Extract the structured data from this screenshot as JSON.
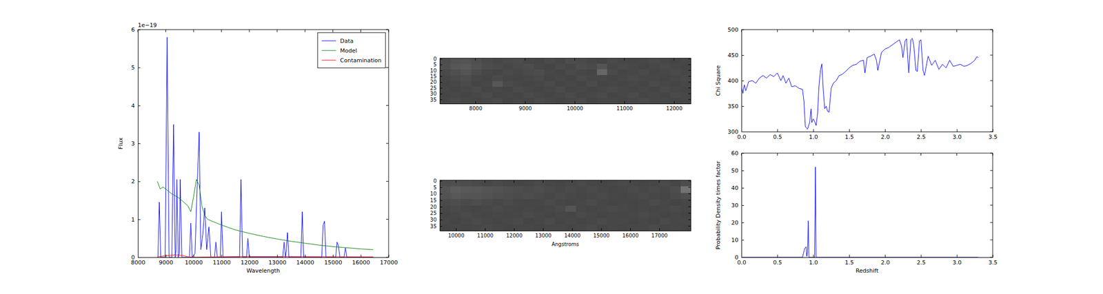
{
  "chart_data": [
    {
      "type": "line",
      "xlabel": "Wavelength",
      "ylabel": "Flux",
      "y_offset_text": "1e−19",
      "xlim": [
        8000,
        17000
      ],
      "xticks": [
        8000,
        9000,
        10000,
        11000,
        12000,
        13000,
        14000,
        15000,
        16000,
        17000
      ],
      "ylim": [
        0,
        6
      ],
      "yticks": [
        0,
        1,
        2,
        3,
        4,
        5,
        6
      ],
      "legend": "upper right",
      "series": [
        {
          "name": "Data",
          "color": "#0000ff",
          "x": [
            8720,
            8770,
            8820,
            8980,
            9050,
            9120,
            9220,
            9280,
            9340,
            9370,
            9400,
            9450,
            9490,
            9520,
            9580,
            9850,
            9900,
            9950,
            10050,
            10130,
            10200,
            10260,
            10330,
            10400,
            10470,
            10550,
            10620,
            10750,
            10800,
            10850,
            10960,
            11000,
            11060,
            11650,
            11700,
            11760,
            11900,
            11950,
            12000,
            13200,
            13250,
            13300,
            13330,
            13370,
            13420,
            13850,
            13900,
            13950,
            14600,
            14650,
            14700,
            14750,
            15100,
            15150,
            15200,
            15250,
            15400,
            15450,
            15500,
            16450
          ],
          "values": [
            0,
            1.45,
            0,
            0,
            5.8,
            0,
            0,
            3.5,
            0,
            0.2,
            2.05,
            0,
            0.1,
            2.05,
            0,
            0,
            0.9,
            0,
            0.1,
            1.9,
            3.3,
            0.2,
            0.6,
            1.3,
            0.2,
            0.8,
            0,
            0,
            0.4,
            0,
            0,
            1.2,
            0,
            0,
            2.05,
            0,
            0,
            0.5,
            0,
            0,
            0.4,
            0,
            0.2,
            0.65,
            0,
            0,
            1.2,
            0,
            0,
            0.85,
            0.95,
            0,
            0,
            0.4,
            0.3,
            0,
            0,
            0.25,
            0,
            0
          ]
        },
        {
          "name": "Model",
          "color": "#008000",
          "x": [
            8700,
            8800,
            8900,
            9000,
            9200,
            9500,
            9800,
            9900,
            10000,
            10100,
            10200,
            10300,
            10400,
            10500,
            11000,
            11500,
            12000,
            12500,
            13000,
            13500,
            14000,
            14500,
            15000,
            15500,
            16000,
            16450
          ],
          "values": [
            2.0,
            1.8,
            1.85,
            1.8,
            1.68,
            1.55,
            1.35,
            1.2,
            1.6,
            2.05,
            1.9,
            1.35,
            1.1,
            1.0,
            0.85,
            0.72,
            0.63,
            0.55,
            0.48,
            0.42,
            0.37,
            0.32,
            0.28,
            0.25,
            0.22,
            0.2
          ]
        },
        {
          "name": "Contamination",
          "color": "#ff0000",
          "x": [
            8700,
            9000,
            9300,
            9600,
            9800,
            10000,
            11500,
            13000,
            16450
          ],
          "values": [
            0.01,
            0.04,
            0.06,
            0.05,
            0.01,
            0,
            0.02,
            0.02,
            0.01
          ]
        }
      ]
    },
    {
      "type": "image",
      "xlim": [
        7280,
        12340
      ],
      "xticks": [
        8000,
        9000,
        10000,
        11000,
        12000
      ],
      "ylim": [
        38.5,
        -0.5
      ],
      "yticks": [
        0,
        5,
        10,
        15,
        20,
        25,
        30,
        35
      ],
      "color_range": [
        0,
        1
      ],
      "cells": [
        [
          0.3,
          0.32,
          0.33,
          0.31,
          0.29,
          0.28,
          0.29,
          0.3,
          0.28,
          0.27,
          0.29,
          0.28,
          0.3,
          0.29,
          0.28,
          0.27,
          0.29,
          0.28,
          0.27,
          0.28,
          0.29,
          0.28,
          0.27,
          0.28
        ],
        [
          0.31,
          0.34,
          0.35,
          0.32,
          0.3,
          0.29,
          0.28,
          0.29,
          0.3,
          0.28,
          0.27,
          0.29,
          0.28,
          0.3,
          0.29,
          0.33,
          0.28,
          0.29,
          0.28,
          0.27,
          0.28,
          0.29,
          0.28,
          0.27
        ],
        [
          0.29,
          0.31,
          0.33,
          0.3,
          0.28,
          0.27,
          0.29,
          0.28,
          0.29,
          0.3,
          0.28,
          0.27,
          0.29,
          0.28,
          0.27,
          0.4,
          0.29,
          0.27,
          0.28,
          0.29,
          0.27,
          0.28,
          0.29,
          0.28
        ],
        [
          0.28,
          0.29,
          0.3,
          0.28,
          0.27,
          0.29,
          0.28,
          0.27,
          0.28,
          0.29,
          0.27,
          0.28,
          0.27,
          0.29,
          0.28,
          0.28,
          0.27,
          0.28,
          0.29,
          0.28,
          0.28,
          0.27,
          0.28,
          0.29
        ],
        [
          0.27,
          0.28,
          0.29,
          0.27,
          0.28,
          0.34,
          0.29,
          0.28,
          0.27,
          0.28,
          0.29,
          0.27,
          0.28,
          0.27,
          0.29,
          0.27,
          0.28,
          0.27,
          0.28,
          0.27,
          0.29,
          0.28,
          0.27,
          0.28
        ],
        [
          0.28,
          0.27,
          0.28,
          0.29,
          0.27,
          0.28,
          0.27,
          0.29,
          0.28,
          0.27,
          0.28,
          0.29,
          0.27,
          0.28,
          0.27,
          0.28,
          0.29,
          0.28,
          0.27,
          0.28,
          0.27,
          0.29,
          0.28,
          0.27
        ],
        [
          0.27,
          0.28,
          0.27,
          0.28,
          0.29,
          0.27,
          0.28,
          0.27,
          0.29,
          0.28,
          0.27,
          0.28,
          0.29,
          0.27,
          0.28,
          0.29,
          0.27,
          0.28,
          0.29,
          0.27,
          0.28,
          0.27,
          0.29,
          0.28
        ],
        [
          0.28,
          0.29,
          0.28,
          0.27,
          0.28,
          0.29,
          0.27,
          0.28,
          0.27,
          0.29,
          0.28,
          0.27,
          0.28,
          0.29,
          0.27,
          0.28,
          0.28,
          0.27,
          0.28,
          0.29,
          0.28,
          0.28,
          0.27,
          0.28
        ]
      ]
    },
    {
      "type": "image",
      "xlabel": "Angstroms",
      "xlim": [
        9440,
        18090
      ],
      "xticks": [
        10000,
        11000,
        12000,
        13000,
        14000,
        15000,
        16000,
        17000
      ],
      "ylim": [
        38.5,
        -0.5
      ],
      "yticks": [
        0,
        5,
        10,
        15,
        20,
        25,
        30,
        35
      ],
      "color_range": [
        0,
        1
      ],
      "cells": [
        [
          0.3,
          0.31,
          0.3,
          0.29,
          0.28,
          0.29,
          0.28,
          0.27,
          0.28,
          0.29,
          0.28,
          0.27,
          0.28,
          0.29,
          0.28,
          0.27,
          0.28,
          0.29,
          0.28,
          0.27,
          0.28,
          0.29,
          0.28,
          0.3
        ],
        [
          0.33,
          0.36,
          0.35,
          0.34,
          0.33,
          0.32,
          0.31,
          0.3,
          0.29,
          0.3,
          0.29,
          0.28,
          0.29,
          0.28,
          0.29,
          0.28,
          0.27,
          0.28,
          0.29,
          0.28,
          0.29,
          0.28,
          0.3,
          0.45
        ],
        [
          0.32,
          0.34,
          0.33,
          0.33,
          0.32,
          0.31,
          0.3,
          0.29,
          0.3,
          0.29,
          0.28,
          0.29,
          0.28,
          0.27,
          0.28,
          0.29,
          0.28,
          0.27,
          0.28,
          0.29,
          0.28,
          0.27,
          0.29,
          0.31
        ],
        [
          0.29,
          0.3,
          0.29,
          0.3,
          0.29,
          0.28,
          0.29,
          0.28,
          0.27,
          0.28,
          0.29,
          0.28,
          0.27,
          0.28,
          0.29,
          0.28,
          0.27,
          0.28,
          0.27,
          0.28,
          0.29,
          0.28,
          0.27,
          0.28
        ],
        [
          0.28,
          0.29,
          0.28,
          0.27,
          0.28,
          0.29,
          0.28,
          0.27,
          0.28,
          0.27,
          0.28,
          0.29,
          0.33,
          0.28,
          0.27,
          0.28,
          0.29,
          0.28,
          0.27,
          0.28,
          0.27,
          0.28,
          0.29,
          0.28
        ],
        [
          0.27,
          0.28,
          0.29,
          0.28,
          0.27,
          0.28,
          0.27,
          0.28,
          0.29,
          0.28,
          0.27,
          0.28,
          0.27,
          0.29,
          0.28,
          0.27,
          0.28,
          0.27,
          0.28,
          0.29,
          0.28,
          0.27,
          0.28,
          0.27
        ],
        [
          0.28,
          0.27,
          0.28,
          0.29,
          0.28,
          0.27,
          0.28,
          0.29,
          0.27,
          0.28,
          0.29,
          0.27,
          0.28,
          0.27,
          0.28,
          0.29,
          0.28,
          0.28,
          0.27,
          0.28,
          0.27,
          0.29,
          0.28,
          0.28
        ],
        [
          0.27,
          0.28,
          0.27,
          0.28,
          0.29,
          0.28,
          0.27,
          0.28,
          0.28,
          0.27,
          0.28,
          0.28,
          0.27,
          0.28,
          0.29,
          0.27,
          0.28,
          0.27,
          0.28,
          0.28,
          0.29,
          0.27,
          0.28,
          0.27
        ]
      ]
    },
    {
      "type": "line",
      "ylabel": "Chi Square",
      "xlim": [
        0,
        3.5
      ],
      "xticks": [
        {
          "value": 0,
          "label": "0.0"
        },
        0.5,
        {
          "value": 1,
          "label": "1.0"
        },
        1.5,
        {
          "value": 2,
          "label": "2.0"
        },
        2.5,
        {
          "value": 3,
          "label": "3.0"
        },
        3.5
      ],
      "ylim": [
        300,
        500
      ],
      "yticks": [
        300,
        350,
        400,
        450,
        500
      ],
      "series": [
        {
          "color": "#0000ff",
          "x": [
            0.0,
            0.02,
            0.04,
            0.06,
            0.1,
            0.15,
            0.2,
            0.25,
            0.3,
            0.35,
            0.4,
            0.45,
            0.5,
            0.55,
            0.58,
            0.62,
            0.66,
            0.7,
            0.75,
            0.8,
            0.85,
            0.87,
            0.89,
            0.92,
            0.95,
            0.97,
            0.98,
            1.0,
            1.02,
            1.04,
            1.06,
            1.08,
            1.1,
            1.12,
            1.14,
            1.16,
            1.18,
            1.2,
            1.22,
            1.25,
            1.28,
            1.32,
            1.36,
            1.4,
            1.45,
            1.5,
            1.55,
            1.6,
            1.65,
            1.7,
            1.72,
            1.75,
            1.8,
            1.85,
            1.88,
            1.9,
            1.95,
            2.0,
            2.05,
            2.1,
            2.15,
            2.2,
            2.23,
            2.25,
            2.28,
            2.3,
            2.33,
            2.36,
            2.38,
            2.4,
            2.43,
            2.45,
            2.48,
            2.5,
            2.53,
            2.55,
            2.6,
            2.65,
            2.7,
            2.75,
            2.8,
            2.85,
            2.9,
            2.95,
            3.0,
            3.05,
            3.1,
            3.15,
            3.2,
            3.25,
            3.28,
            3.3
          ],
          "values": [
            388,
            375,
            392,
            380,
            398,
            400,
            395,
            405,
            410,
            405,
            412,
            408,
            415,
            400,
            410,
            395,
            405,
            388,
            390,
            385,
            383,
            360,
            310,
            305,
            318,
            345,
            318,
            325,
            320,
            312,
            335,
            390,
            420,
            433,
            380,
            345,
            350,
            340,
            338,
            385,
            395,
            400,
            410,
            412,
            418,
            425,
            430,
            432,
            438,
            440,
            415,
            445,
            448,
            452,
            440,
            420,
            455,
            462,
            465,
            470,
            475,
            480,
            468,
            445,
            478,
            482,
            415,
            480,
            483,
            470,
            420,
            418,
            478,
            480,
            420,
            410,
            448,
            430,
            440,
            422,
            432,
            425,
            440,
            428,
            430,
            432,
            428,
            430,
            434,
            440,
            447,
            445
          ]
        }
      ]
    },
    {
      "type": "line",
      "xlabel": "Redshift",
      "ylabel": "Probability Density times factor",
      "xlim": [
        0,
        3.5
      ],
      "xticks": [
        {
          "value": 0,
          "label": "0.0"
        },
        0.5,
        {
          "value": 1,
          "label": "1.0"
        },
        1.5,
        {
          "value": 2,
          "label": "2.0"
        },
        2.5,
        {
          "value": 3,
          "label": "3.0"
        },
        3.5
      ],
      "ylim": [
        0,
        60
      ],
      "yticks": [
        0,
        10,
        20,
        30,
        40,
        50,
        60
      ],
      "series": [
        {
          "color": "#0000ff",
          "x": [
            0,
            0.85,
            0.88,
            0.9,
            0.91,
            0.92,
            0.93,
            0.94,
            0.96,
            1.0,
            1.02,
            1.03,
            1.04,
            1.06,
            3.3
          ],
          "values": [
            0,
            0,
            5,
            6,
            0.5,
            3,
            21,
            0,
            0,
            0,
            0,
            52,
            0,
            0,
            0
          ]
        }
      ]
    }
  ]
}
